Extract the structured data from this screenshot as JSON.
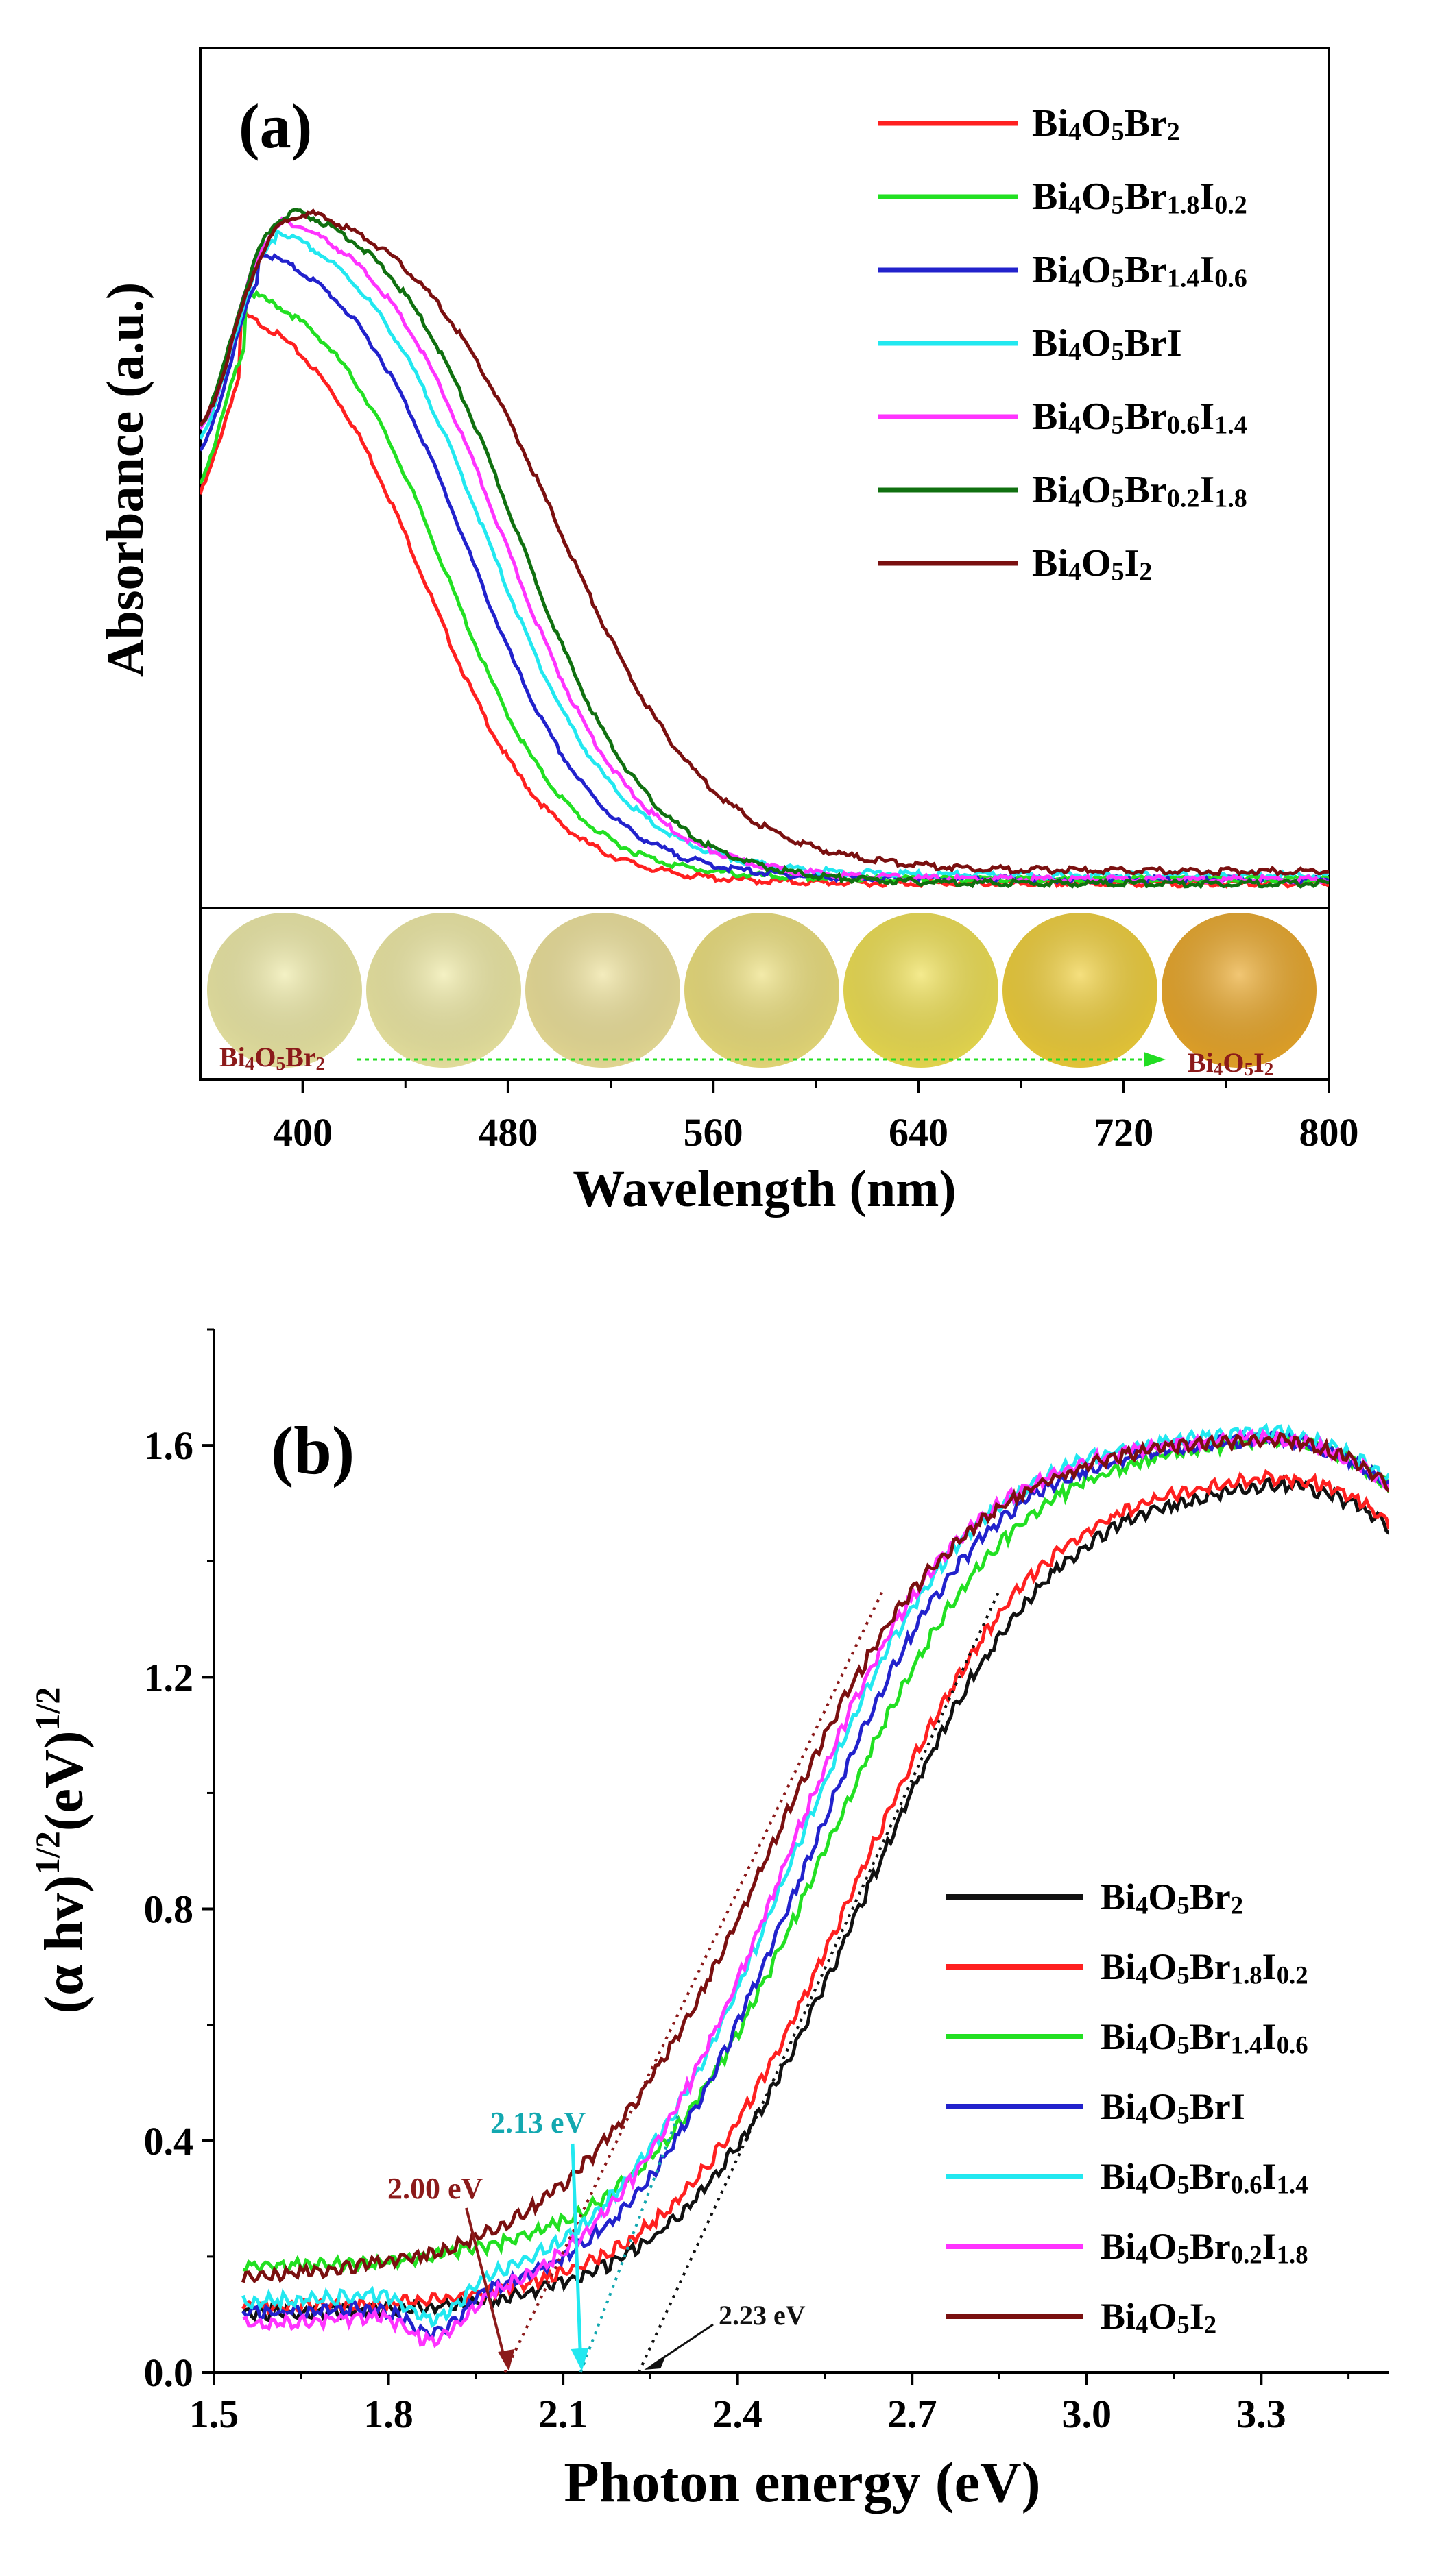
{
  "colors": {
    "a": [
      "#ff2020",
      "#22e022",
      "#2222cc",
      "#22e8f0",
      "#ff33ff",
      "#107010",
      "#7a1010"
    ],
    "b": [
      "#111111",
      "#ff2020",
      "#22e022",
      "#2222cc",
      "#22e8f0",
      "#ff33ff",
      "#7a1010"
    ]
  },
  "chart_data": [
    {
      "panel": "(a)",
      "type": "line",
      "xlabel": "Wavelength (nm)",
      "ylabel": "Absorbance (a.u.)",
      "xlim": [
        360,
        800
      ],
      "ylim": [
        0,
        1.05
      ],
      "xticks": [
        "400",
        "480",
        "560",
        "640",
        "720",
        "800"
      ],
      "xtick_values": [
        400,
        480,
        560,
        640,
        720,
        800
      ],
      "legend": "top-right",
      "inset": {
        "left_label": "Bi4O5Br2",
        "right_label": "Bi4O5I2",
        "swatch_colors": [
          "#eeeaa6",
          "#efeaa4",
          "#eee29a",
          "#ede07c",
          "#efe052",
          "#f0cf3a",
          "#eaa82a"
        ]
      },
      "series": [
        {
          "name": "Bi4O5Br2",
          "peak_x": 376,
          "peak_y": 0.76,
          "mid": 448,
          "width": 24,
          "base": 0.03
        },
        {
          "name": "Bi4O5Br1.8I0.2",
          "peak_x": 378,
          "peak_y": 0.78,
          "mid": 456,
          "width": 24,
          "base": 0.035
        },
        {
          "name": "Bi4O5Br1.4I0.6",
          "peak_x": 383,
          "peak_y": 0.83,
          "mid": 465,
          "width": 25,
          "base": 0.035
        },
        {
          "name": "Bi4O5BrI",
          "peak_x": 390,
          "peak_y": 0.86,
          "mid": 472,
          "width": 26,
          "base": 0.04
        },
        {
          "name": "Bi4O5Br0.6I1.4",
          "peak_x": 392,
          "peak_y": 0.87,
          "mid": 478,
          "width": 26,
          "base": 0.035
        },
        {
          "name": "Bi4O5Br0.2I1.8",
          "peak_x": 397,
          "peak_y": 0.88,
          "mid": 484,
          "width": 26,
          "base": 0.03
        },
        {
          "name": "Bi4O5I2",
          "peak_x": 404,
          "peak_y": 0.88,
          "mid": 500,
          "width": 30,
          "base": 0.045
        }
      ]
    },
    {
      "panel": "(b)",
      "type": "line",
      "xlabel": "Photon energy (eV)",
      "ylabel": "(α hv)1/2(eV)1/2",
      "xlim": [
        1.5,
        3.52
      ],
      "ylim": [
        0,
        1.8
      ],
      "xticks": [
        "1.5",
        "1.8",
        "2.1",
        "2.4",
        "2.7",
        "3.0",
        "3.3"
      ],
      "xtick_values": [
        1.5,
        1.8,
        2.1,
        2.4,
        2.7,
        3.0,
        3.3
      ],
      "yticks": [
        "0.0",
        "0.4",
        "0.8",
        "1.2",
        "1.6"
      ],
      "ytick_values": [
        0,
        0.4,
        0.8,
        1.2,
        1.6
      ],
      "legend": "lower-right",
      "annotations": [
        {
          "text": "2.00 eV",
          "color": "#8b1a1a",
          "x": 2.0
        },
        {
          "text": "2.13 eV",
          "color": "#13a8b0",
          "x": 2.13
        },
        {
          "text": "2.23 eV",
          "color": "#111111",
          "x": 2.23
        }
      ],
      "series": [
        {
          "name": "Bi4O5Br2",
          "mid": 2.62,
          "width": 0.16,
          "amp": 1.55,
          "base": 0.1
        },
        {
          "name": "Bi4O5Br1.8I0.2",
          "mid": 2.6,
          "width": 0.16,
          "amp": 1.56,
          "base": 0.11
        },
        {
          "name": "Bi4O5Br1.4I0.6",
          "mid": 2.55,
          "width": 0.16,
          "amp": 1.62,
          "base": 0.18
        },
        {
          "name": "Bi4O5BrI",
          "mid": 2.51,
          "width": 0.155,
          "amp": 1.62,
          "base": 0.1
        },
        {
          "name": "Bi4O5Br0.6I1.4",
          "mid": 2.49,
          "width": 0.155,
          "amp": 1.63,
          "base": 0.12
        },
        {
          "name": "Bi4O5Br0.2I1.8",
          "mid": 2.47,
          "width": 0.155,
          "amp": 1.62,
          "base": 0.08
        },
        {
          "name": "Bi4O5I2",
          "mid": 2.45,
          "width": 0.17,
          "amp": 1.62,
          "base": 0.16
        }
      ]
    }
  ]
}
